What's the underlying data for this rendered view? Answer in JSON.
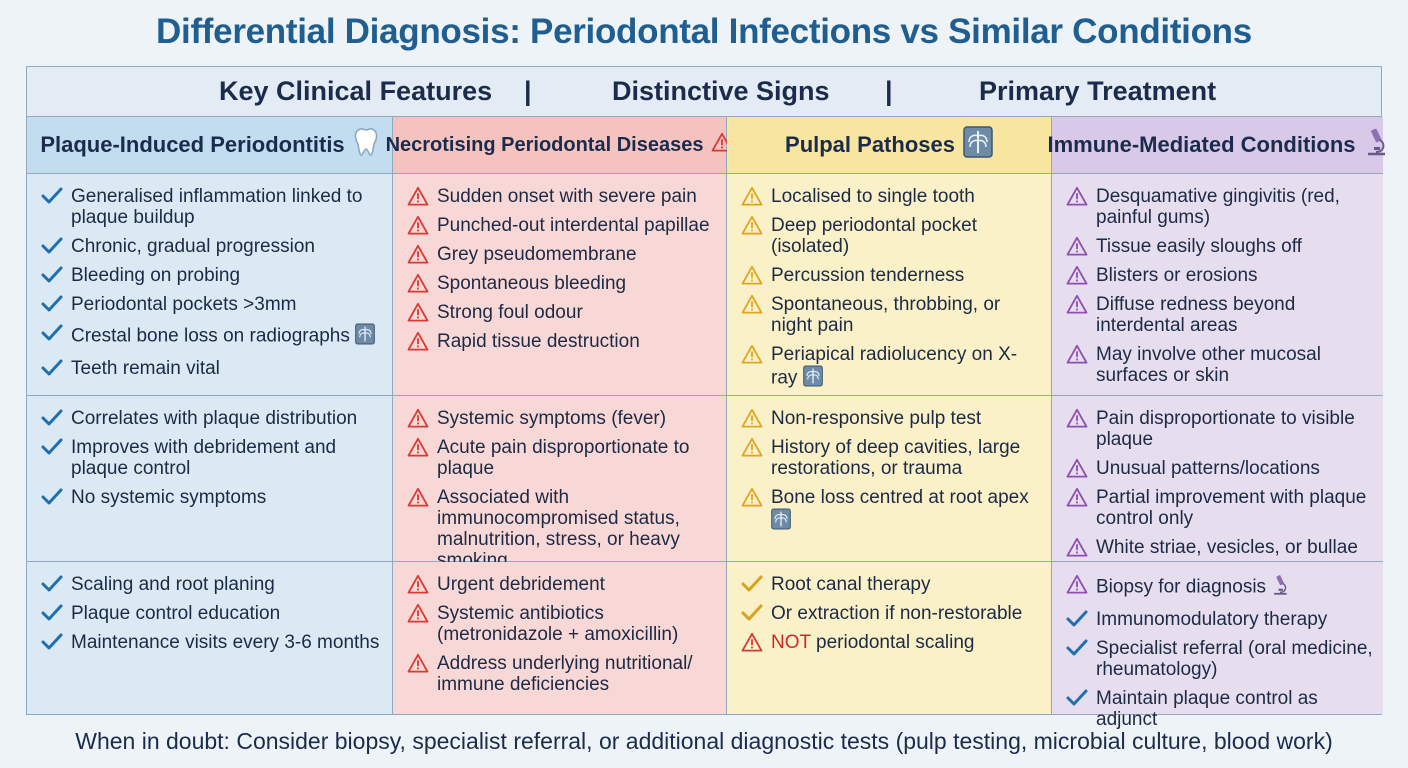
{
  "title": "Differential Diagnosis: Periodontal Infections vs Similar Conditions",
  "header": {
    "features": "Key Clinical Features",
    "signs": "Distinctive Signs",
    "treatment": "Primary Treatment",
    "separator": "|"
  },
  "columns": {
    "c0": {
      "title": "Plaque-Induced Periodontitis",
      "icon": "tooth-icon",
      "bg": "#dbe9f5",
      "head_bg": "#c2dcf0"
    },
    "c1": {
      "title": "Necrotising Periodontal Diseases",
      "icon": "warning-icon",
      "bg": "#f8d8d6",
      "head_bg": "#f4c3c0"
    },
    "c2": {
      "title": "Pulpal Pathoses",
      "icon": "xray-icon",
      "bg": "#fbf1c9",
      "head_bg": "#f8e6a0"
    },
    "c3": {
      "title": "Immune-Mediated Conditions",
      "icon": "microscope-icon",
      "bg": "#e6ddef",
      "head_bg": "#d9c9e8"
    }
  },
  "rows": {
    "r0": {
      "c0": [
        {
          "text": "Generalised inflammation linked to plaque buildup",
          "mark": "check"
        },
        {
          "text": "Chronic, gradual progression",
          "mark": "check"
        },
        {
          "text": "Bleeding on probing",
          "mark": "check"
        },
        {
          "text": "Periodontal pockets >3mm",
          "mark": "check"
        },
        {
          "text": "Crestal bone loss on radiographs",
          "mark": "check",
          "icon": "xray-icon"
        },
        {
          "text": "Teeth remain vital",
          "mark": "check"
        }
      ],
      "c1": [
        {
          "text": "Sudden onset with severe pain",
          "mark": "warn-red"
        },
        {
          "text": "Punched-out interdental papillae",
          "mark": "warn-red"
        },
        {
          "text": "Grey pseudomembrane",
          "mark": "warn-red"
        },
        {
          "text": "Spontaneous bleeding",
          "mark": "warn-red"
        },
        {
          "text": "Strong foul odour",
          "mark": "warn-red"
        },
        {
          "text": "Rapid tissue destruction",
          "mark": "warn-red"
        }
      ],
      "c2": [
        {
          "text": "Localised to single tooth",
          "mark": "warn-yellow"
        },
        {
          "text": "Deep periodontal pocket (isolated)",
          "mark": "warn-yellow"
        },
        {
          "text": "Percussion tenderness",
          "mark": "warn-yellow"
        },
        {
          "text": "Spontaneous, throbbing, or night pain",
          "mark": "warn-yellow"
        },
        {
          "text": "Periapical radiolucency on X-ray",
          "mark": "warn-yellow",
          "icon": "xray-icon"
        }
      ],
      "c3": [
        {
          "text": "Desquamative gingivitis (red, painful gums)",
          "mark": "warn-purple"
        },
        {
          "text": "Tissue easily sloughs off",
          "mark": "warn-purple"
        },
        {
          "text": "Blisters or erosions",
          "mark": "warn-purple"
        },
        {
          "text": "Diffuse redness beyond interdental areas",
          "mark": "warn-purple"
        },
        {
          "text": "May involve other mucosal surfaces or skin",
          "mark": "warn-purple"
        }
      ]
    },
    "r1": {
      "c0": [
        {
          "text": "Correlates with plaque distribution",
          "mark": "check"
        },
        {
          "text": "Improves with debridement and plaque control",
          "mark": "check"
        },
        {
          "text": "No systemic symptoms",
          "mark": "check"
        }
      ],
      "c1": [
        {
          "text": "Systemic symptoms (fever)",
          "mark": "warn-red"
        },
        {
          "text": "Acute pain disproportionate to plaque",
          "mark": "warn-red"
        },
        {
          "text": "Associated with immunocompromised status, malnutrition, stress, or heavy smoking",
          "mark": "warn-red"
        }
      ],
      "c2": [
        {
          "text": "Non-responsive pulp test",
          "mark": "warn-yellow"
        },
        {
          "text": "History of deep cavities, large restorations, or trauma",
          "mark": "warn-yellow"
        },
        {
          "text": "Bone loss centred at root apex",
          "mark": "warn-yellow",
          "icon": "xray-icon"
        }
      ],
      "c3": [
        {
          "text": "Pain disproportionate to visible plaque",
          "mark": "warn-purple"
        },
        {
          "text": "Unusual patterns/locations",
          "mark": "warn-purple"
        },
        {
          "text": "Partial improvement with plaque control only",
          "mark": "warn-purple"
        },
        {
          "text": "White striae, vesicles, or bullae",
          "mark": "warn-purple"
        }
      ]
    },
    "r2": {
      "c0": [
        {
          "text": "Scaling and root planing",
          "mark": "check"
        },
        {
          "text": "Plaque control education",
          "mark": "check"
        },
        {
          "text": "Maintenance visits every 3-6 months",
          "mark": "check"
        }
      ],
      "c1": [
        {
          "text": "Urgent debridement",
          "mark": "warn-red"
        },
        {
          "text": "Systemic antibiotics (metronidazole + amoxicillin)",
          "mark": "warn-red"
        },
        {
          "text": "Address underlying nutritional/ immune deficiencies",
          "mark": "warn-red"
        }
      ],
      "c2": [
        {
          "text": "Root canal therapy",
          "mark": "check-gold"
        },
        {
          "text": "Or extraction if non-restorable",
          "mark": "check-gold"
        },
        {
          "text": "periodontal scaling",
          "mark": "warn-red",
          "em": "NOT"
        }
      ],
      "c3": [
        {
          "text": "Biopsy for diagnosis",
          "mark": "warn-purple",
          "icon": "microscope-icon"
        },
        {
          "text": "Immunomodulatory therapy",
          "mark": "check"
        },
        {
          "text": "Specialist referral (oral medicine, rheumatology)",
          "mark": "check"
        },
        {
          "text": "Maintain plaque control as adjunct",
          "mark": "check"
        }
      ]
    }
  },
  "footer": "When in doubt: Consider biopsy, specialist referral, or additional diagnostic tests (pulp testing, microbial culture, blood work)",
  "colors": {
    "check": "#1f6fb0",
    "check-gold": "#d9a21c",
    "warn-red": "#d83a34",
    "warn-yellow": "#e0a51d",
    "warn-purple": "#8e4fb0"
  }
}
